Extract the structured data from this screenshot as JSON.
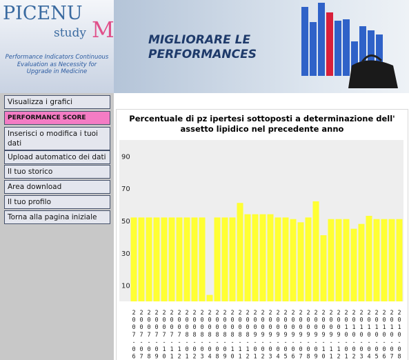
{
  "header": {
    "logo": "PICENU",
    "logo_study": "study",
    "logo_m": "M",
    "tagline": [
      "Performance Indicators Continuous",
      "Evaluation as Necessity for",
      "Upgrade  in Medicine"
    ],
    "banner": [
      "MIGLIORARE LE",
      "PERFORMANCES"
    ]
  },
  "menu": [
    "Visualizza i grafici",
    "PERFORMANCE SCORE",
    "Inserisci o modifica i tuoi dati",
    "Upload automatico dei dati",
    "Il tuo storico",
    "Area download",
    "Il tuo profilo",
    "Torna alla pagina iniziale"
  ],
  "chart_data": {
    "type": "bar",
    "title": "Percentuale di pz ipertesi sottoposti a determinazione dell' assetto lipidico nel precedente anno",
    "categories": [
      "2007-06",
      "2007-07",
      "2007-08",
      "2007-09",
      "2007-10",
      "2007-11",
      "2007-12",
      "2008-01",
      "2008-02",
      "2008-03",
      "2008-04",
      "2008-08",
      "2008-09",
      "2008-10",
      "2008-11",
      "2008-12",
      "2009-01",
      "2009-02",
      "2009-03",
      "2009-04",
      "2009-05",
      "2009-06",
      "2009-07",
      "2009-08",
      "2009-09",
      "2009-10",
      "2009-11",
      "2009-12",
      "2010-01",
      "2010-02",
      "2010-03",
      "2010-04",
      "2010-05",
      "2010-06",
      "2010-07",
      "2010-08"
    ],
    "values": [
      52,
      52,
      52,
      52,
      52,
      52,
      52,
      52,
      52,
      52,
      4,
      52,
      52,
      52,
      61,
      54,
      54,
      54,
      54,
      52,
      52,
      51,
      49,
      52,
      62,
      41,
      51,
      51,
      51,
      45,
      48,
      53,
      51,
      51,
      51,
      51
    ],
    "color": "#ffff33",
    "ylim": [
      0,
      100
    ],
    "yticks": [
      10,
      30,
      50,
      70,
      90
    ],
    "grid": false
  }
}
